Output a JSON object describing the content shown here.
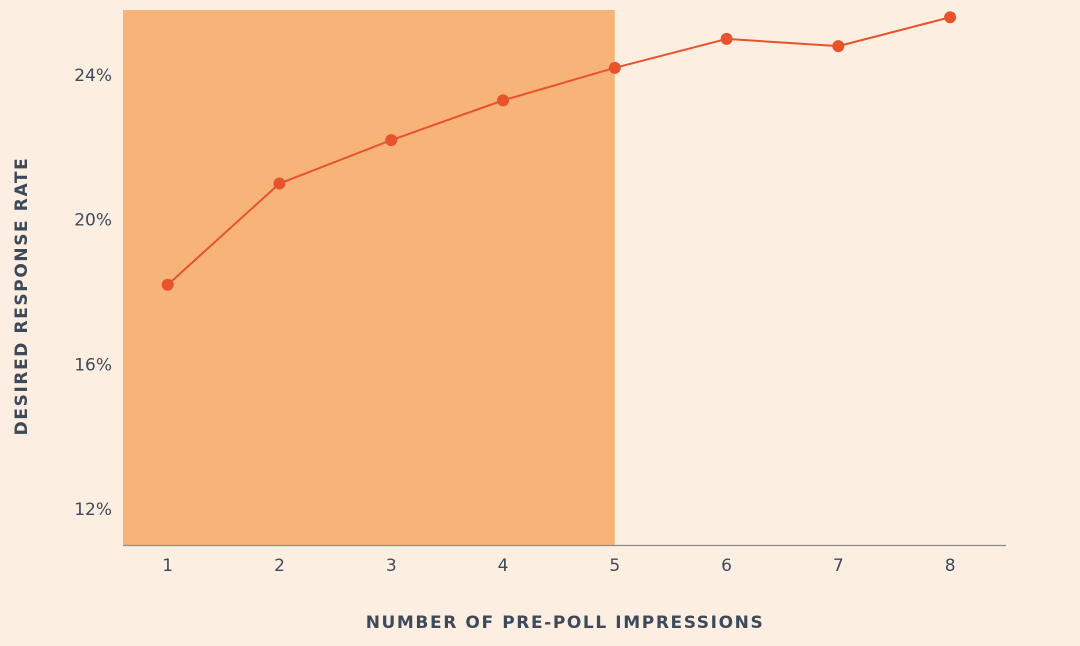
{
  "chart_data": {
    "type": "line",
    "title": "",
    "xlabel": "NUMBER OF PRE-POLL IMPRESSIONS",
    "ylabel": "DESIRED RESPONSE RATE",
    "x": [
      1,
      2,
      3,
      4,
      5,
      6,
      7,
      8
    ],
    "x_tick_labels": [
      "1",
      "2",
      "3",
      "4",
      "5",
      "6",
      "7",
      "8"
    ],
    "y_ticks": [
      12,
      16,
      20,
      24
    ],
    "y_tick_labels": [
      "12%",
      "16%",
      "20%",
      "24%"
    ],
    "ylim": [
      11,
      25.8
    ],
    "xlim": [
      0.6,
      8.5
    ],
    "series": [
      {
        "values": [
          18.2,
          21.0,
          22.2,
          23.3,
          24.2,
          25.0,
          24.8,
          25.6
        ],
        "color": "#E8532B"
      }
    ],
    "highlight_range": {
      "x_start": 0.6,
      "x_end": 5,
      "color": "#F8B478"
    },
    "grid": false,
    "legend": "none",
    "colors": {
      "background": "#FDEEE2",
      "line": "#E8532B",
      "highlight": "#F8B478",
      "axis": "#8C8C8C",
      "text": "#3E4A59"
    }
  }
}
